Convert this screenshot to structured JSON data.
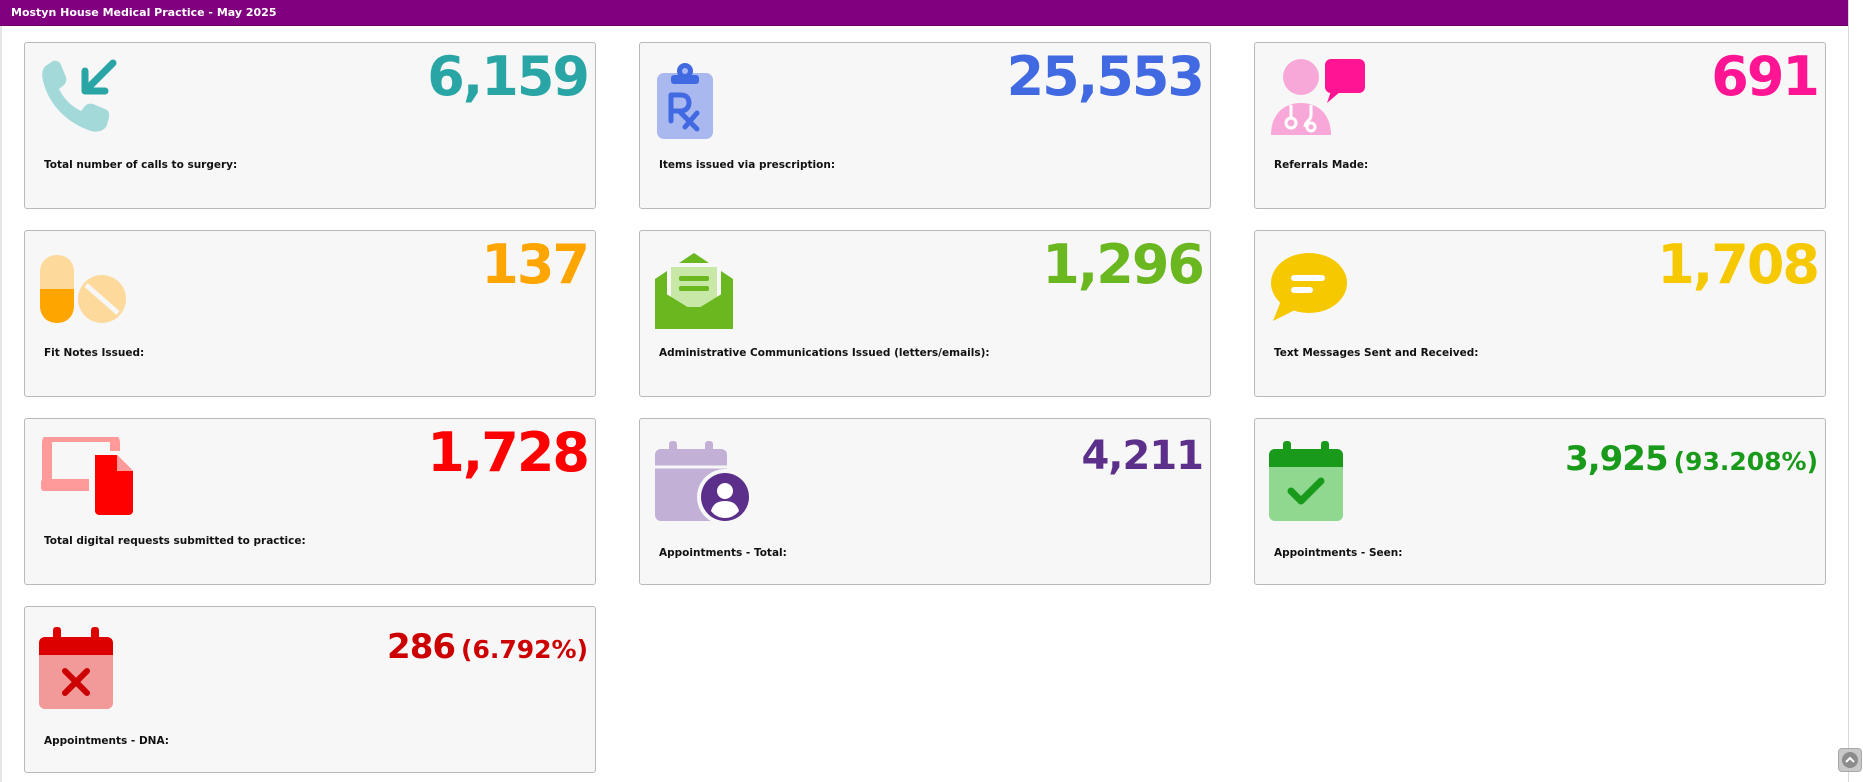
{
  "header": {
    "title": "Mostyn House Medical Practice - May 2025"
  },
  "cards": [
    {
      "value": "6,159",
      "label": "Total number of calls to surgery:",
      "color": "#2aa5a5",
      "icon": "phone-incoming-icon"
    },
    {
      "value": "25,553",
      "label": "Items issued via prescription:",
      "color": "#4169e1",
      "icon": "prescription-icon"
    },
    {
      "value": "691",
      "label": "Referrals Made:",
      "color": "#ff1493",
      "icon": "doctor-referral-icon"
    },
    {
      "value": "137",
      "label": "Fit Notes Issued:",
      "color": "#ffa500",
      "icon": "pills-icon"
    },
    {
      "value": "1,296",
      "label": "Administrative Communications Issued (letters/emails):",
      "color": "#6ab720",
      "icon": "envelope-letter-icon"
    },
    {
      "value": "1,708",
      "label": "Text Messages Sent and Received:",
      "color": "#f5c800",
      "icon": "chat-bubble-icon"
    },
    {
      "value": "1,728",
      "label": "Total digital requests submitted to practice:",
      "color": "#ff0000",
      "icon": "digital-request-icon"
    },
    {
      "value": "4,211",
      "label": "Appointments - Total:",
      "color": "#5c2f8a",
      "icon": "calendar-user-icon"
    },
    {
      "value": "3,925",
      "pct": "(93.208%)",
      "label": "Appointments - Seen:",
      "color": "#1a9a1a",
      "icon": "calendar-check-icon"
    },
    {
      "value": "286",
      "pct": "(6.792%)",
      "label": "Appointments - DNA:",
      "color": "#cc0000",
      "icon": "calendar-x-icon"
    }
  ]
}
